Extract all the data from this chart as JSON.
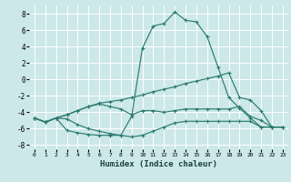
{
  "xlabel": "Humidex (Indice chaleur)",
  "bg_color": "#cce8e8",
  "grid_color": "#ffffff",
  "line_color": "#2d7b6e",
  "xlim": [
    -0.5,
    23.5
  ],
  "ylim": [
    -8.5,
    9.0
  ],
  "yticks": [
    -8,
    -6,
    -4,
    -2,
    0,
    2,
    4,
    6,
    8
  ],
  "xticks": [
    0,
    1,
    2,
    3,
    4,
    5,
    6,
    7,
    8,
    9,
    10,
    11,
    12,
    13,
    14,
    15,
    16,
    17,
    18,
    19,
    20,
    21,
    22,
    23
  ],
  "line1_x": [
    0,
    1,
    2,
    3,
    4,
    5,
    6,
    7,
    8,
    9,
    10,
    11,
    12,
    13,
    14,
    15,
    16,
    17,
    18,
    19,
    20,
    21,
    22,
    23
  ],
  "line1_y": [
    -4.7,
    -5.2,
    -4.7,
    -4.3,
    -3.8,
    -3.3,
    -2.9,
    -2.7,
    -2.5,
    -2.2,
    -1.9,
    -1.5,
    -1.2,
    -0.9,
    -0.5,
    -0.2,
    0.1,
    0.4,
    0.8,
    -2.2,
    -2.5,
    -3.8,
    -5.8,
    -5.8
  ],
  "line2_x": [
    0,
    1,
    2,
    3,
    4,
    5,
    6,
    7,
    8,
    9,
    10,
    11,
    12,
    13,
    14,
    15,
    16,
    17,
    18,
    19,
    20,
    21,
    22,
    23
  ],
  "line2_y": [
    -4.7,
    -5.2,
    -4.7,
    -4.8,
    -5.5,
    -6.0,
    -6.3,
    -6.6,
    -6.8,
    -7.0,
    -6.8,
    -6.3,
    -5.8,
    -5.3,
    -5.1,
    -5.1,
    -5.1,
    -5.1,
    -5.1,
    -5.1,
    -5.1,
    -5.8,
    -5.8,
    -5.8
  ],
  "line3_x": [
    0,
    1,
    2,
    3,
    4,
    5,
    6,
    7,
    8,
    9,
    10,
    11,
    12,
    13,
    14,
    15,
    16,
    17,
    18,
    19,
    20,
    21,
    22,
    23
  ],
  "line3_y": [
    -4.7,
    -5.2,
    -4.7,
    -6.2,
    -6.5,
    -6.7,
    -6.8,
    -6.8,
    -6.8,
    -4.5,
    3.8,
    6.5,
    6.8,
    8.2,
    7.2,
    7.0,
    5.2,
    1.5,
    -2.2,
    -3.5,
    -4.7,
    -5.8,
    -5.8,
    -5.8
  ],
  "line4_x": [
    0,
    1,
    2,
    3,
    4,
    5,
    6,
    7,
    8,
    9,
    10,
    11,
    12,
    13,
    14,
    15,
    16,
    17,
    18,
    19,
    20,
    21,
    22,
    23
  ],
  "line4_y": [
    -4.7,
    -5.2,
    -4.7,
    -4.3,
    -3.8,
    -3.3,
    -3.0,
    -3.3,
    -3.6,
    -4.3,
    -3.8,
    -3.8,
    -4.0,
    -3.8,
    -3.6,
    -3.6,
    -3.6,
    -3.6,
    -3.6,
    -3.3,
    -4.5,
    -5.0,
    -5.8,
    -5.8
  ]
}
